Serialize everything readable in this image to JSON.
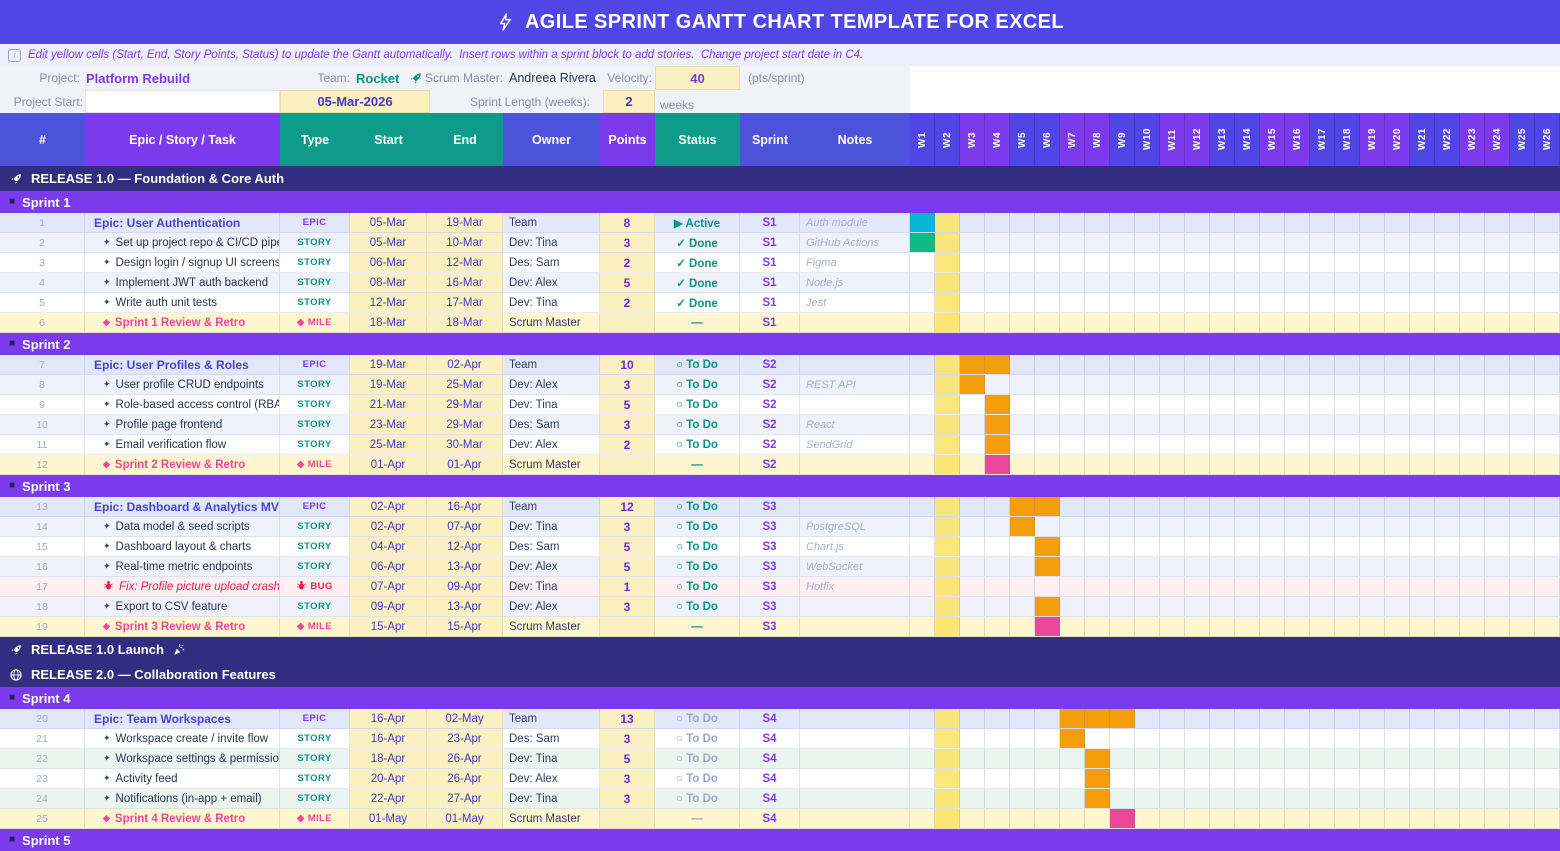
{
  "colors": {
    "accent_indigo": "#4F46E5",
    "accent_purple": "#7C3AED",
    "accent_teal": "#0D9488",
    "release_band": "#312E81",
    "current_week_band": "#FAE364",
    "editable_cell": "#FBF0C0",
    "bar_active": "#06B6D4",
    "bar_done": "#10B981",
    "bar_todo": "#F59E0B",
    "bar_milestone": "#EC4899"
  },
  "glyphs": {
    "sprint_square": "■",
    "story_bullet": "✦",
    "milestone_diamond": "◆"
  },
  "title": {
    "icon": "bolt-icon",
    "text": "AGILE SPRINT GANTT CHART TEMPLATE FOR EXCEL"
  },
  "instruction": {
    "icon": "info-icon",
    "text": "Edit yellow cells (Start, End, Story Points, Status) to update the Gantt automatically.  Insert rows within a sprint block to add stories.  Change project start date in C4."
  },
  "info": {
    "project_label": "Project:",
    "project": "Platform Rebuild",
    "team_label": "Team:",
    "team": "Rocket",
    "team_icon": "rocket-icon",
    "scrum_master_label": "Scrum Master:",
    "scrum_master": "Andreea Rivera",
    "velocity_label": "Velocity:",
    "velocity": "40",
    "velocity_unit": "(pts/sprint)",
    "project_start_label": "Project Start:",
    "project_start": "05-Mar-2026",
    "sprint_length_label": "Sprint Length (weeks):",
    "sprint_length": "2",
    "sprint_length_unit": "weeks"
  },
  "table": {
    "columns": [
      "#",
      "Epic / Story / Task",
      "Type",
      "Start",
      "End",
      "Owner",
      "Points",
      "Status",
      "Sprint",
      "Notes"
    ],
    "weeks": [
      "W1",
      "W2",
      "W3",
      "W4",
      "W5",
      "W6",
      "W7",
      "W8",
      "W9",
      "W10",
      "W11",
      "W12",
      "W13",
      "W14",
      "W15",
      "W16",
      "W17",
      "W18",
      "W19",
      "W20",
      "W21",
      "W22",
      "W23",
      "W24",
      "W25",
      "W26"
    ],
    "current_week": 2
  },
  "sections": [
    {
      "kind": "release",
      "icon": "rocket-icon",
      "label": "RELEASE 1.0 — Foundation & Core Auth"
    },
    {
      "kind": "sprint",
      "label": "Sprint 1",
      "tint": "lav",
      "rows": [
        {
          "num": "1",
          "kind": "epic",
          "task": "Epic: User Authentication",
          "type": "EPIC",
          "start": "05-Mar",
          "end": "19-Mar",
          "owner": "Team",
          "points": "8",
          "status": "▶ Active",
          "sprint": "S1",
          "notes": "Auth module",
          "muted": false,
          "bars": [
            {
              "week": 1,
              "span": 1,
              "color": "bar_active"
            }
          ]
        },
        {
          "num": "2",
          "kind": "story",
          "task": "Set up project repo & CI/CD pipeline",
          "type": "STORY",
          "start": "05-Mar",
          "end": "10-Mar",
          "owner": "Dev: Tina",
          "points": "3",
          "status": "✓ Done",
          "sprint": "S1",
          "notes": "GitHub Actions",
          "muted": false,
          "bars": [
            {
              "week": 1,
              "span": 1,
              "color": "bar_done"
            }
          ]
        },
        {
          "num": "3",
          "kind": "story",
          "task": "Design login / signup UI screens",
          "type": "STORY",
          "start": "06-Mar",
          "end": "12-Mar",
          "owner": "Des: Sam",
          "points": "2",
          "status": "✓ Done",
          "sprint": "S1",
          "notes": "Figma",
          "muted": false,
          "bars": []
        },
        {
          "num": "4",
          "kind": "story",
          "task": "Implement JWT auth backend",
          "type": "STORY",
          "start": "08-Mar",
          "end": "16-Mar",
          "owner": "Dev: Alex",
          "points": "5",
          "status": "✓ Done",
          "sprint": "S1",
          "notes": "Node.js",
          "muted": false,
          "bars": []
        },
        {
          "num": "5",
          "kind": "story",
          "task": "Write auth unit tests",
          "type": "STORY",
          "start": "12-Mar",
          "end": "17-Mar",
          "owner": "Dev: Tina",
          "points": "2",
          "status": "✓ Done",
          "sprint": "S1",
          "notes": "Jest",
          "muted": false,
          "bars": []
        },
        {
          "num": "6",
          "kind": "mile",
          "task": "Sprint 1 Review & Retro",
          "type": "MILE",
          "start": "18-Mar",
          "end": "18-Mar",
          "owner": "Scrum Master",
          "points": "",
          "status": "—",
          "sprint": "S1",
          "notes": "",
          "muted": false,
          "bars": []
        }
      ]
    },
    {
      "kind": "sprint",
      "label": "Sprint 2",
      "tint": "lav",
      "rows": [
        {
          "num": "7",
          "kind": "epic",
          "task": "Epic: User Profiles & Roles",
          "type": "EPIC",
          "start": "19-Mar",
          "end": "02-Apr",
          "owner": "Team",
          "points": "10",
          "status": "○ To Do",
          "sprint": "S2",
          "notes": "",
          "muted": false,
          "bars": [
            {
              "week": 3,
              "span": 2,
              "color": "bar_todo"
            }
          ]
        },
        {
          "num": "8",
          "kind": "story",
          "task": "User profile CRUD endpoints",
          "type": "STORY",
          "start": "19-Mar",
          "end": "25-Mar",
          "owner": "Dev: Alex",
          "points": "3",
          "status": "○ To Do",
          "sprint": "S2",
          "notes": "REST API",
          "muted": false,
          "bars": [
            {
              "week": 3,
              "span": 1,
              "color": "bar_todo"
            }
          ]
        },
        {
          "num": "9",
          "kind": "story",
          "task": "Role-based access control (RBAC)",
          "type": "STORY",
          "start": "21-Mar",
          "end": "29-Mar",
          "owner": "Dev: Tina",
          "points": "5",
          "status": "○ To Do",
          "sprint": "S2",
          "notes": "",
          "muted": false,
          "bars": [
            {
              "week": 4,
              "span": 1,
              "color": "bar_todo"
            }
          ]
        },
        {
          "num": "10",
          "kind": "story",
          "task": "Profile page frontend",
          "type": "STORY",
          "start": "23-Mar",
          "end": "29-Mar",
          "owner": "Des: Sam",
          "points": "3",
          "status": "○ To Do",
          "sprint": "S2",
          "notes": "React",
          "muted": false,
          "bars": [
            {
              "week": 4,
              "span": 1,
              "color": "bar_todo"
            }
          ]
        },
        {
          "num": "11",
          "kind": "story",
          "task": "Email verification flow",
          "type": "STORY",
          "start": "25-Mar",
          "end": "30-Mar",
          "owner": "Dev: Alex",
          "points": "2",
          "status": "○ To Do",
          "sprint": "S2",
          "notes": "SendGrid",
          "muted": false,
          "bars": [
            {
              "week": 4,
              "span": 1,
              "color": "bar_todo"
            }
          ]
        },
        {
          "num": "12",
          "kind": "mile",
          "task": "Sprint 2 Review & Retro",
          "type": "MILE",
          "start": "01-Apr",
          "end": "01-Apr",
          "owner": "Scrum Master",
          "points": "",
          "status": "—",
          "sprint": "S2",
          "notes": "",
          "muted": false,
          "bars": [
            {
              "week": 4,
              "span": 1,
              "color": "bar_milestone"
            }
          ]
        }
      ]
    },
    {
      "kind": "sprint",
      "label": "Sprint 3",
      "tint": "lav",
      "rows": [
        {
          "num": "13",
          "kind": "epic",
          "task": "Epic: Dashboard & Analytics MVP",
          "type": "EPIC",
          "start": "02-Apr",
          "end": "16-Apr",
          "owner": "Team",
          "points": "12",
          "status": "○ To Do",
          "sprint": "S3",
          "notes": "",
          "muted": false,
          "bars": [
            {
              "week": 5,
              "span": 2,
              "color": "bar_todo"
            }
          ]
        },
        {
          "num": "14",
          "kind": "story",
          "task": "Data model & seed scripts",
          "type": "STORY",
          "start": "02-Apr",
          "end": "07-Apr",
          "owner": "Dev: Tina",
          "points": "3",
          "status": "○ To Do",
          "sprint": "S3",
          "notes": "PostgreSQL",
          "muted": false,
          "bars": [
            {
              "week": 5,
              "span": 1,
              "color": "bar_todo"
            }
          ]
        },
        {
          "num": "15",
          "kind": "story",
          "task": "Dashboard layout & charts",
          "type": "STORY",
          "start": "04-Apr",
          "end": "12-Apr",
          "owner": "Des: Sam",
          "points": "5",
          "status": "○ To Do",
          "sprint": "S3",
          "notes": "Chart.js",
          "muted": false,
          "bars": [
            {
              "week": 6,
              "span": 1,
              "color": "bar_todo"
            }
          ]
        },
        {
          "num": "16",
          "kind": "story",
          "task": "Real-time metric endpoints",
          "type": "STORY",
          "start": "06-Apr",
          "end": "13-Apr",
          "owner": "Dev: Alex",
          "points": "5",
          "status": "○ To Do",
          "sprint": "S3",
          "notes": "WebSocket",
          "muted": false,
          "bars": [
            {
              "week": 6,
              "span": 1,
              "color": "bar_todo"
            }
          ]
        },
        {
          "num": "17",
          "kind": "bug",
          "task": "Fix: Profile picture upload crash",
          "type": "BUG",
          "start": "07-Apr",
          "end": "09-Apr",
          "owner": "Dev: Tina",
          "points": "1",
          "status": "○ To Do",
          "sprint": "S3",
          "notes": "Hotfix",
          "muted": false,
          "bars": []
        },
        {
          "num": "18",
          "kind": "story",
          "task": "Export to CSV feature",
          "type": "STORY",
          "start": "09-Apr",
          "end": "13-Apr",
          "owner": "Dev: Alex",
          "points": "3",
          "status": "○ To Do",
          "sprint": "S3",
          "notes": "",
          "muted": false,
          "bars": [
            {
              "week": 6,
              "span": 1,
              "color": "bar_todo"
            }
          ]
        },
        {
          "num": "19",
          "kind": "mile",
          "task": "Sprint 3 Review & Retro",
          "type": "MILE",
          "start": "15-Apr",
          "end": "15-Apr",
          "owner": "Scrum Master",
          "points": "",
          "status": "—",
          "sprint": "S3",
          "notes": "",
          "muted": false,
          "bars": [
            {
              "week": 6,
              "span": 1,
              "color": "bar_milestone"
            }
          ]
        }
      ]
    },
    {
      "kind": "release",
      "icon": "rocket-icon",
      "label": "RELEASE 1.0 Launch",
      "trailing_icon": "party-icon"
    },
    {
      "kind": "release",
      "icon": "globe-icon",
      "label": "RELEASE 2.0 — Collaboration Features"
    },
    {
      "kind": "sprint",
      "label": "Sprint 4",
      "tint": "mint",
      "rows": [
        {
          "num": "20",
          "kind": "epic",
          "task": "Epic: Team Workspaces",
          "type": "EPIC",
          "start": "16-Apr",
          "end": "02-May",
          "owner": "Team",
          "points": "13",
          "status": "○ To Do",
          "sprint": "S4",
          "notes": "",
          "muted": true,
          "bars": [
            {
              "week": 7,
              "span": 3,
              "color": "bar_todo"
            }
          ]
        },
        {
          "num": "21",
          "kind": "story",
          "task": "Workspace create / invite flow",
          "type": "STORY",
          "start": "16-Apr",
          "end": "23-Apr",
          "owner": "Des: Sam",
          "points": "3",
          "status": "○ To Do",
          "sprint": "S4",
          "notes": "",
          "muted": true,
          "bars": [
            {
              "week": 7,
              "span": 1,
              "color": "bar_todo"
            }
          ]
        },
        {
          "num": "22",
          "kind": "story",
          "task": "Workspace settings & permissions",
          "type": "STORY",
          "start": "18-Apr",
          "end": "26-Apr",
          "owner": "Dev: Tina",
          "points": "5",
          "status": "○ To Do",
          "sprint": "S4",
          "notes": "",
          "muted": true,
          "bars": [
            {
              "week": 8,
              "span": 1,
              "color": "bar_todo"
            }
          ]
        },
        {
          "num": "23",
          "kind": "story",
          "task": "Activity feed",
          "type": "STORY",
          "start": "20-Apr",
          "end": "26-Apr",
          "owner": "Dev: Alex",
          "points": "3",
          "status": "○ To Do",
          "sprint": "S4",
          "notes": "",
          "muted": true,
          "bars": [
            {
              "week": 8,
              "span": 1,
              "color": "bar_todo"
            }
          ]
        },
        {
          "num": "24",
          "kind": "story",
          "task": "Notifications (in-app + email)",
          "type": "STORY",
          "start": "22-Apr",
          "end": "27-Apr",
          "owner": "Dev: Tina",
          "points": "3",
          "status": "○ To Do",
          "sprint": "S4",
          "notes": "",
          "muted": true,
          "bars": [
            {
              "week": 8,
              "span": 1,
              "color": "bar_todo"
            }
          ]
        },
        {
          "num": "25",
          "kind": "mile",
          "task": "Sprint 4 Review & Retro",
          "type": "MILE",
          "start": "01-May",
          "end": "01-May",
          "owner": "Scrum Master",
          "points": "",
          "status": "—",
          "sprint": "S4",
          "notes": "",
          "muted": true,
          "bars": [
            {
              "week": 9,
              "span": 1,
              "color": "bar_milestone"
            }
          ]
        }
      ]
    },
    {
      "kind": "sprint",
      "label": "Sprint 5",
      "tint": "mint",
      "rows": []
    }
  ]
}
